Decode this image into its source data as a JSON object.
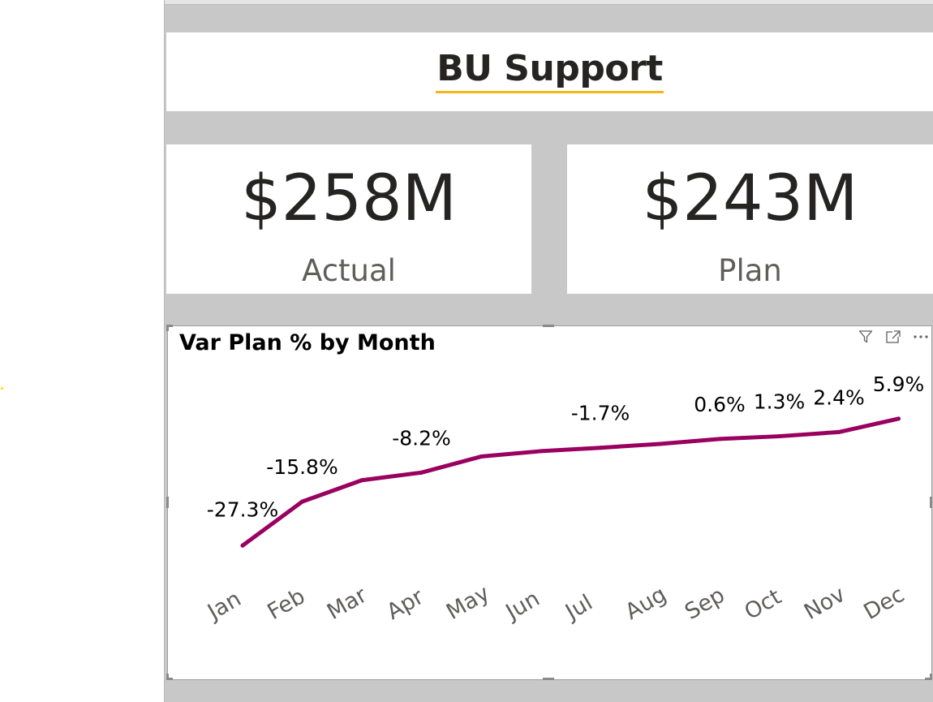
{
  "report": {
    "title": "BU Support"
  },
  "kpis": [
    {
      "value": "$258M",
      "label": "Actual"
    },
    {
      "value": "$243M",
      "label": "Plan"
    }
  ],
  "visual_header": {
    "icons": [
      "filter-icon",
      "focus-mode-icon",
      "more-options-icon"
    ]
  },
  "colors": {
    "line": "#99005f",
    "title_underline": "#f2b619",
    "canvas": "#c8c8c8"
  },
  "chart_data": {
    "type": "line",
    "title": "Var Plan % by Month",
    "categories": [
      "Jan",
      "Feb",
      "Mar",
      "Apr",
      "May",
      "Jun",
      "Jul",
      "Aug",
      "Sep",
      "Oct",
      "Nov",
      "Dec"
    ],
    "values": [
      -27.3,
      -15.8,
      -10.2,
      -8.2,
      -4.0,
      -2.6,
      -1.7,
      -0.7,
      0.6,
      1.3,
      2.4,
      5.9
    ],
    "data_labels": [
      "-27.3%",
      "-15.8%",
      "",
      "-8.2%",
      "",
      "",
      "-1.7%",
      "",
      "0.6%",
      "1.3%",
      "2.4%",
      "5.9%"
    ],
    "xlabel": "",
    "ylabel": "",
    "ylim": [
      -30,
      8
    ],
    "grid": false,
    "legend": "none"
  }
}
